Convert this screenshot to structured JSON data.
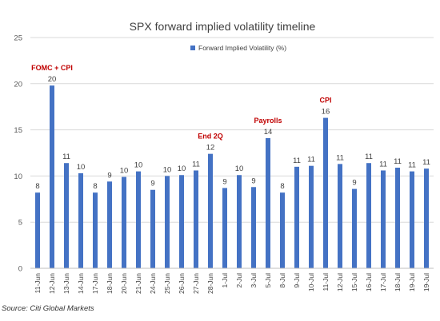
{
  "chart_data": {
    "type": "bar",
    "title": "SPX forward implied volatility timeline",
    "xlabel": "",
    "ylabel": "",
    "ylim": [
      0,
      25
    ],
    "yticks": [
      0,
      5,
      10,
      15,
      20,
      25
    ],
    "grid": true,
    "legend_position": "top-center",
    "categories": [
      "11-Jun",
      "12-Jun",
      "13-Jun",
      "14-Jun",
      "17-Jun",
      "18-Jun",
      "20-Jun",
      "21-Jun",
      "24-Jun",
      "25-Jun",
      "26-Jun",
      "27-Jun",
      "28-Jun",
      "1-Jul",
      "2-Jul",
      "3-Jul",
      "5-Jul",
      "8-Jul",
      "9-Jul",
      "10-Jul",
      "11-Jul",
      "12-Jul",
      "15-Jul",
      "16-Jul",
      "17-Jul",
      "18-Jul",
      "19-Jul",
      "19-Jul"
    ],
    "series": [
      {
        "name": "Forward Implied Volatility (%)",
        "color": "#4472C4",
        "values": [
          8.2,
          19.8,
          11.4,
          10.3,
          8.2,
          9.4,
          9.9,
          10.5,
          8.5,
          10.0,
          10.1,
          10.6,
          12.4,
          8.7,
          10.1,
          8.8,
          14.1,
          8.2,
          11.0,
          11.1,
          16.3,
          11.3,
          8.6,
          11.4,
          10.6,
          10.9,
          10.5,
          10.8
        ],
        "data_labels": [
          "8",
          "20",
          "11",
          "10",
          "8",
          "9",
          "10",
          "10",
          "9",
          "10",
          "10",
          "11",
          "12",
          "9",
          "10",
          "9",
          "14",
          "8",
          "11",
          "11",
          "16",
          "11",
          "9",
          "11",
          "11",
          "11",
          "11",
          "11"
        ]
      }
    ],
    "annotations": [
      {
        "text": "FOMC + CPI",
        "category_index": 1,
        "color": "#C00000"
      },
      {
        "text": "End 2Q",
        "category_index": 12,
        "color": "#C00000"
      },
      {
        "text": "Payrolls",
        "category_index": 16,
        "color": "#C00000"
      },
      {
        "text": "CPI",
        "category_index": 20,
        "color": "#C00000"
      }
    ]
  },
  "source": "Source: Citi Global Markets"
}
